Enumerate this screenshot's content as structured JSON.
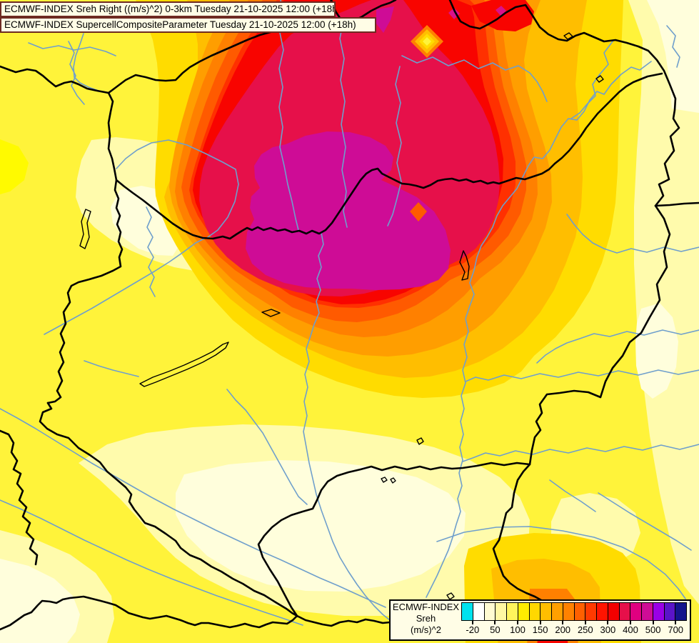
{
  "header": {
    "line1": "ECMWF-INDEX Sreh Right ((m/s)^2) 0-3km Tuesday 21-10-2025 12:00 (+18h)",
    "line2": "ECMWF-INDEX SupercellCompositeParameter Tuesday 21-10-2025 12:00 (+18h)"
  },
  "titlebox": {
    "bg": "#FFFDE6",
    "border": "#6E2A22"
  },
  "legend": {
    "product": "ECMWF-INDEX",
    "parameter": "Sreh",
    "units": "(m/s)^2",
    "tick_labels": [
      "-20",
      "50",
      "100",
      "150",
      "200",
      "250",
      "300",
      "400",
      "500",
      "700"
    ],
    "colors": [
      "#00E2EE",
      "#FFFFFF",
      "#FFFBD2",
      "#FFF8A2",
      "#FFF45C",
      "#FFEC00",
      "#FFD800",
      "#FFBE00",
      "#FFA000",
      "#FF8200",
      "#FF6000",
      "#FF3A00",
      "#FF1400",
      "#F20000",
      "#E6104A",
      "#E00080",
      "#CE0C96",
      "#9A00E6",
      "#5A14C8",
      "#14148C"
    ],
    "box_bg": "#FFFDE6",
    "box_border": "#000000"
  },
  "map": {
    "border_color": "#000000",
    "river_color": "#6F9FCC",
    "lake_color": "#000000",
    "palette": {
      "yellow": "#FFF33A",
      "bright_yellow": "#FFFA00",
      "pale_yellow": "#FFFBAC",
      "cream": "#FFFEDC",
      "gold": "#FFDC00",
      "amber": "#FFBE00",
      "orange": "#FF9E00",
      "dark_orange": "#FF8000",
      "vermilion": "#FF5A00",
      "scarlet": "#FF3000",
      "red": "#F80400",
      "crimson": "#E6104A",
      "magenta": "#CE0C96",
      "deep_pink": "#D8128C"
    }
  }
}
